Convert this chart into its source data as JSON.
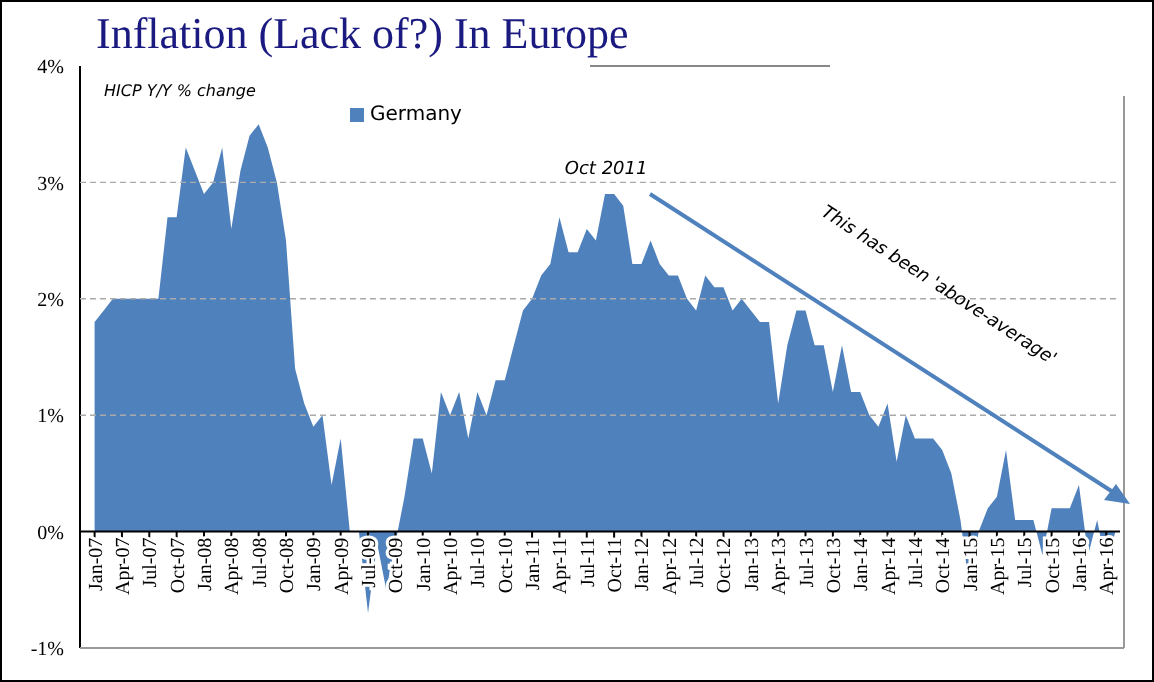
{
  "chart_data": {
    "type": "area",
    "title": "Inflation (Lack of?) In Europe",
    "subtitle": "HICP Y/Y % change",
    "categories": [
      "Jan-07",
      null,
      null,
      "Apr-07",
      null,
      null,
      "Jul-07",
      null,
      null,
      "Oct-07",
      null,
      null,
      "Jan-08",
      null,
      null,
      "Apr-08",
      null,
      null,
      "Jul-08",
      null,
      null,
      "Oct-08",
      null,
      null,
      "Jan-09",
      null,
      null,
      "Apr-09",
      null,
      null,
      "Jul-09",
      null,
      null,
      "Oct-09",
      null,
      null,
      "Jan-10",
      null,
      null,
      "Apr-10",
      null,
      null,
      "Jul-10",
      null,
      null,
      "Oct-10",
      null,
      null,
      "Jan-11",
      null,
      null,
      "Apr-11",
      null,
      null,
      "Jul-11",
      null,
      null,
      "Oct-11",
      null,
      null,
      "Jan-12",
      null,
      null,
      "Apr-12",
      null,
      null,
      "Jul-12",
      null,
      null,
      "Oct-12",
      null,
      null,
      "Jan-13",
      null,
      null,
      "Apr-13",
      null,
      null,
      "Jul-13",
      null,
      null,
      "Oct-13",
      null,
      null,
      "Jan-14",
      null,
      null,
      "Apr-14",
      null,
      null,
      "Jul-14",
      null,
      null,
      "Oct-14",
      null,
      null,
      "Jan-15",
      null,
      null,
      "Apr-15",
      null,
      null,
      "Jul-15",
      null,
      null,
      "Oct-15",
      null,
      null,
      "Jan-16",
      null,
      null,
      "Apr-16",
      null
    ],
    "series": [
      {
        "name": "Germany",
        "color": "#4f81bd",
        "values": [
          1.8,
          1.9,
          2.0,
          2.0,
          2.0,
          2.0,
          2.0,
          2.0,
          2.7,
          2.7,
          3.3,
          3.1,
          2.9,
          3.0,
          3.3,
          2.6,
          3.1,
          3.4,
          3.5,
          3.3,
          3.0,
          2.5,
          1.4,
          1.1,
          0.9,
          1.0,
          0.4,
          0.8,
          0.0,
          0.0,
          -0.7,
          -0.1,
          -0.5,
          -0.1,
          0.3,
          0.8,
          0.8,
          0.5,
          1.2,
          1.0,
          1.2,
          0.8,
          1.2,
          1.0,
          1.3,
          1.3,
          1.6,
          1.9,
          2.0,
          2.2,
          2.3,
          2.7,
          2.4,
          2.4,
          2.6,
          2.5,
          2.9,
          2.9,
          2.8,
          2.3,
          2.3,
          2.5,
          2.3,
          2.2,
          2.2,
          2.0,
          1.9,
          2.2,
          2.1,
          2.1,
          1.9,
          2.0,
          1.9,
          1.8,
          1.8,
          1.1,
          1.6,
          1.9,
          1.9,
          1.6,
          1.6,
          1.2,
          1.6,
          1.2,
          1.2,
          1.0,
          0.9,
          1.1,
          0.6,
          1.0,
          0.8,
          0.8,
          0.8,
          0.7,
          0.5,
          0.1,
          -0.5,
          0.0,
          0.2,
          0.3,
          0.7,
          0.1,
          0.1,
          0.1,
          -0.2,
          0.2,
          0.2,
          0.2,
          0.4,
          -0.2,
          0.1,
          -0.3,
          0.0
        ]
      }
    ],
    "ylim": [
      -1,
      4
    ],
    "yticks": [
      {
        "value": -1,
        "label": "-1%"
      },
      {
        "value": 0,
        "label": "0%"
      },
      {
        "value": 1,
        "label": "1%"
      },
      {
        "value": 2,
        "label": "2%"
      },
      {
        "value": 3,
        "label": "3%"
      },
      {
        "value": 4,
        "label": "4%"
      }
    ],
    "grid": "y",
    "legend": "top left",
    "annotations": [
      {
        "text": "Oct 2011",
        "x": "Oct-11",
        "y": 2.9
      },
      "This has been 'above-average'"
    ]
  }
}
